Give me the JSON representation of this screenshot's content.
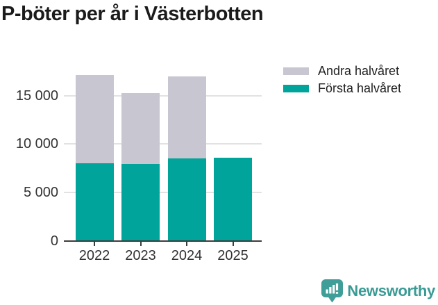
{
  "title": "P-böter per år i Västerbotten",
  "legend": [
    {
      "label": "Andra halvåret",
      "color": "#c8c6d0"
    },
    {
      "label": "Första halvåret",
      "color": "#00a49b"
    }
  ],
  "chart_data": {
    "type": "bar",
    "stacked": true,
    "title": "P-böter per år i Västerbotten",
    "categories": [
      "2022",
      "2023",
      "2024",
      "2025"
    ],
    "series": [
      {
        "name": "Första halvåret",
        "color": "#00a49b",
        "values": [
          8000,
          7950,
          8550,
          8600
        ]
      },
      {
        "name": "Andra halvåret",
        "color": "#c8c6d0",
        "values": [
          9100,
          7350,
          8450,
          0
        ]
      }
    ],
    "totals": [
      17100,
      15300,
      17000,
      8600
    ],
    "xlabel": "",
    "ylabel": "",
    "ylim": [
      0,
      17700
    ],
    "yticks": [
      0,
      5000,
      10000,
      15000
    ],
    "ytick_labels": [
      "0",
      "5 000",
      "10 000",
      "15 000"
    ],
    "grid": "horizontal",
    "legend_position": "top-right",
    "axis_color": "#3c3c3c",
    "gridline_color": "#e2e2e2",
    "text_color": "#333333"
  },
  "branding": {
    "logo_text": "Newsworthy",
    "logo_color": "#3a9a94",
    "logo_icon": "bar-chart-speech-bubble"
  }
}
